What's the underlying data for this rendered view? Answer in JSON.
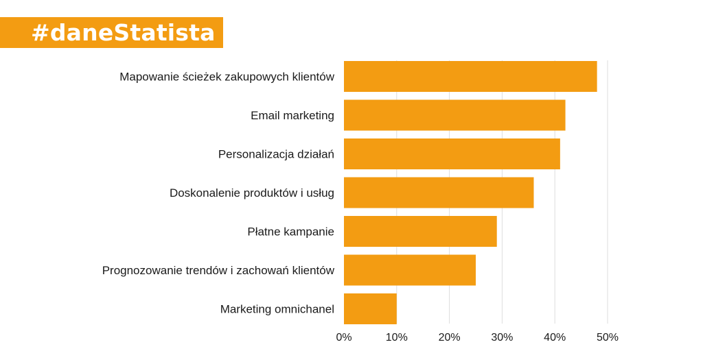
{
  "brand": {
    "label": "#daneStatista",
    "color": "#f39c12"
  },
  "chart_data": {
    "type": "bar",
    "orientation": "horizontal",
    "title": "",
    "xlabel": "",
    "ylabel": "",
    "categories": [
      "Mapowanie ścieżek zakupowych klientów",
      "Email marketing",
      "Personalizacja działań",
      "Doskonalenie produktów i usług",
      "Płatne kampanie",
      "Prognozowanie trendów i zachowań klientów",
      "Marketing omnichanel"
    ],
    "values": [
      48,
      42,
      41,
      36,
      29,
      25,
      10
    ],
    "xlim": [
      0,
      50
    ],
    "ticks": [
      0,
      10,
      20,
      30,
      40,
      50
    ],
    "tick_labels": [
      "0%",
      "10%",
      "20%",
      "30%",
      "40%",
      "50%"
    ],
    "grid": "vertical",
    "legend": "none",
    "bar_color": "#f39c12",
    "grid_color": "#dddddd"
  }
}
